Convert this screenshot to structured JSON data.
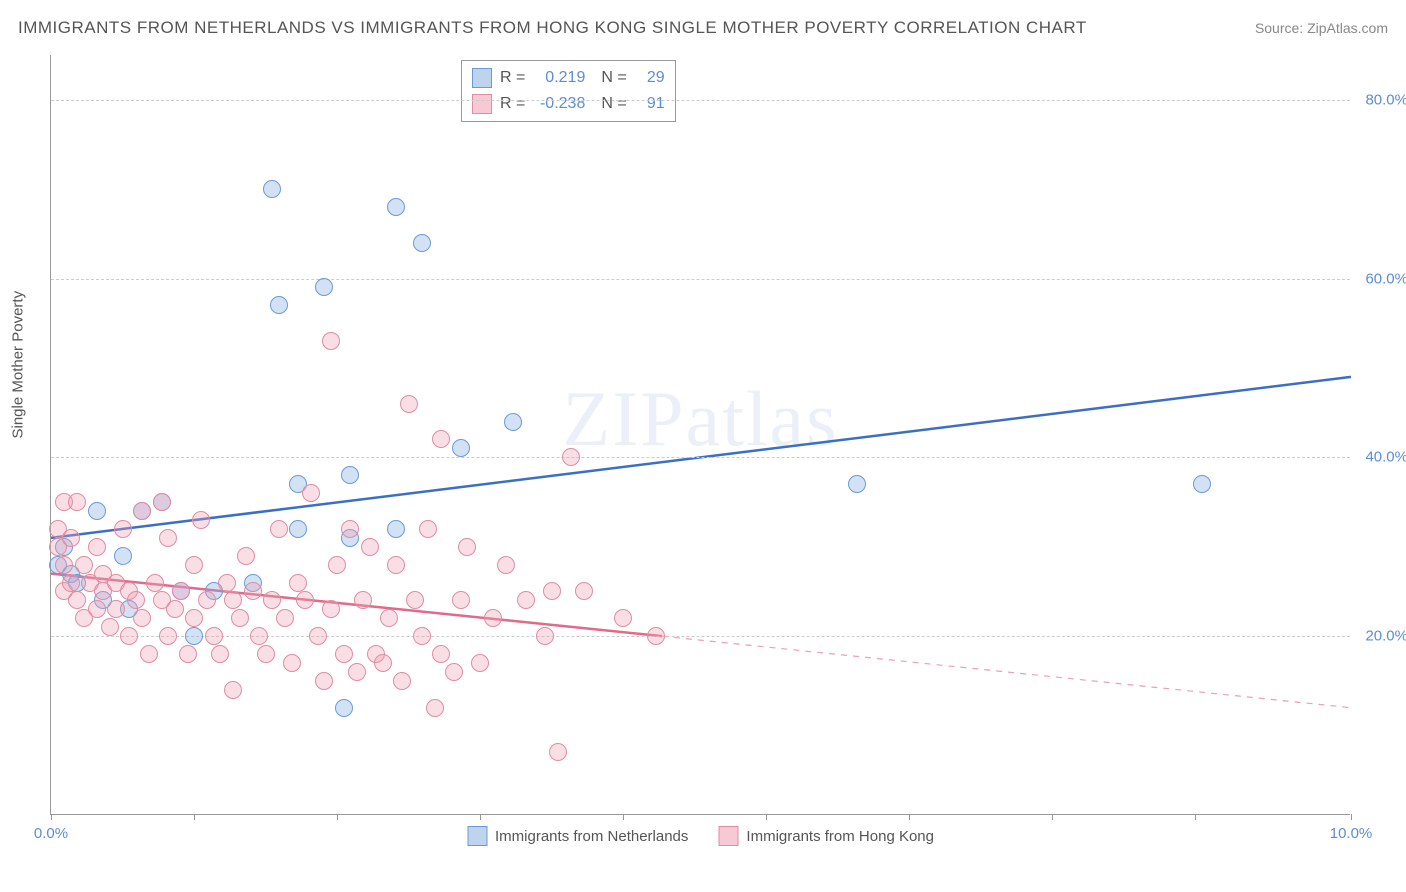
{
  "title": "IMMIGRANTS FROM NETHERLANDS VS IMMIGRANTS FROM HONG KONG SINGLE MOTHER POVERTY CORRELATION CHART",
  "source": "Source: ZipAtlas.com",
  "ylabel": "Single Mother Poverty",
  "watermark": "ZIPatlas",
  "chart": {
    "type": "scatter",
    "xlim": [
      0,
      10
    ],
    "ylim": [
      0,
      85
    ],
    "xticks": [
      0.0,
      1.1,
      2.2,
      3.3,
      4.4,
      5.5,
      6.6,
      7.7,
      8.8,
      10.0
    ],
    "xtick_labels": {
      "0": "0.0%",
      "10": "10.0%"
    },
    "yticks": [
      20,
      40,
      60,
      80
    ],
    "ytick_labels": [
      "20.0%",
      "40.0%",
      "60.0%",
      "80.0%"
    ],
    "grid_color": "#cccccc",
    "axis_color": "#999999",
    "background_color": "#ffffff",
    "marker_radius": 9,
    "marker_stroke_width": 1.5,
    "trend_line_width": 2.5
  },
  "series": [
    {
      "name": "Immigrants from Netherlands",
      "fill": "rgba(130,170,225,0.35)",
      "stroke": "#6a9bd8",
      "swatch_fill": "#bdd3ee",
      "swatch_stroke": "#6a9bd8",
      "R": "0.219",
      "N": "29",
      "trend": {
        "x1": 0,
        "y1": 31,
        "x2": 10,
        "y2": 49,
        "color": "#3b6fc4",
        "dash": null
      },
      "points": [
        [
          0.05,
          28
        ],
        [
          0.1,
          30
        ],
        [
          0.15,
          27
        ],
        [
          0.2,
          26
        ],
        [
          0.35,
          34
        ],
        [
          0.55,
          29
        ],
        [
          0.7,
          34
        ],
        [
          0.85,
          35
        ],
        [
          0.4,
          24
        ],
        [
          0.6,
          23
        ],
        [
          1.0,
          25
        ],
        [
          1.1,
          20
        ],
        [
          1.25,
          25
        ],
        [
          1.55,
          26
        ],
        [
          1.7,
          70
        ],
        [
          1.75,
          57
        ],
        [
          1.9,
          37
        ],
        [
          1.9,
          32
        ],
        [
          2.1,
          59
        ],
        [
          2.25,
          12
        ],
        [
          2.3,
          31
        ],
        [
          2.3,
          38
        ],
        [
          2.65,
          68
        ],
        [
          2.65,
          32
        ],
        [
          2.85,
          64
        ],
        [
          3.15,
          41
        ],
        [
          3.55,
          44
        ],
        [
          6.2,
          37
        ],
        [
          8.85,
          37
        ]
      ]
    },
    {
      "name": "Immigrants from Hong Kong",
      "fill": "rgba(240,160,180,0.35)",
      "stroke": "#e08da2",
      "swatch_fill": "#f6c9d4",
      "swatch_stroke": "#e08da2",
      "R": "-0.238",
      "N": "91",
      "trend": {
        "x1": 0,
        "y1": 27,
        "x2": 4.7,
        "y2": 20,
        "color": "#e06a8a",
        "dash": null
      },
      "trend_ext": {
        "x1": 4.7,
        "y1": 20,
        "x2": 10,
        "y2": 12,
        "color": "#e8a0b3",
        "dash": "6 6"
      },
      "points": [
        [
          0.05,
          32
        ],
        [
          0.05,
          30
        ],
        [
          0.1,
          35
        ],
        [
          0.1,
          28
        ],
        [
          0.1,
          25
        ],
        [
          0.15,
          31
        ],
        [
          0.15,
          26
        ],
        [
          0.2,
          35
        ],
        [
          0.2,
          24
        ],
        [
          0.25,
          28
        ],
        [
          0.25,
          22
        ],
        [
          0.3,
          26
        ],
        [
          0.35,
          23
        ],
        [
          0.35,
          30
        ],
        [
          0.4,
          25
        ],
        [
          0.4,
          27
        ],
        [
          0.45,
          21
        ],
        [
          0.5,
          26
        ],
        [
          0.5,
          23
        ],
        [
          0.55,
          32
        ],
        [
          0.6,
          25
        ],
        [
          0.6,
          20
        ],
        [
          0.65,
          24
        ],
        [
          0.7,
          34
        ],
        [
          0.7,
          22
        ],
        [
          0.75,
          18
        ],
        [
          0.8,
          26
        ],
        [
          0.85,
          24
        ],
        [
          0.85,
          35
        ],
        [
          0.9,
          20
        ],
        [
          0.9,
          31
        ],
        [
          0.95,
          23
        ],
        [
          1.0,
          25
        ],
        [
          1.05,
          18
        ],
        [
          1.1,
          22
        ],
        [
          1.1,
          28
        ],
        [
          1.15,
          33
        ],
        [
          1.2,
          24
        ],
        [
          1.25,
          20
        ],
        [
          1.3,
          18
        ],
        [
          1.35,
          26
        ],
        [
          1.4,
          24
        ],
        [
          1.4,
          14
        ],
        [
          1.45,
          22
        ],
        [
          1.5,
          29
        ],
        [
          1.55,
          25
        ],
        [
          1.6,
          20
        ],
        [
          1.65,
          18
        ],
        [
          1.7,
          24
        ],
        [
          1.75,
          32
        ],
        [
          1.8,
          22
        ],
        [
          1.85,
          17
        ],
        [
          1.9,
          26
        ],
        [
          1.95,
          24
        ],
        [
          2.0,
          36
        ],
        [
          2.05,
          20
        ],
        [
          2.1,
          15
        ],
        [
          2.15,
          23
        ],
        [
          2.15,
          53
        ],
        [
          2.2,
          28
        ],
        [
          2.25,
          18
        ],
        [
          2.3,
          32
        ],
        [
          2.35,
          16
        ],
        [
          2.4,
          24
        ],
        [
          2.45,
          30
        ],
        [
          2.5,
          18
        ],
        [
          2.55,
          17
        ],
        [
          2.6,
          22
        ],
        [
          2.65,
          28
        ],
        [
          2.7,
          15
        ],
        [
          2.75,
          46
        ],
        [
          2.8,
          24
        ],
        [
          2.85,
          20
        ],
        [
          2.9,
          32
        ],
        [
          2.95,
          12
        ],
        [
          3.0,
          18
        ],
        [
          3.0,
          42
        ],
        [
          3.1,
          16
        ],
        [
          3.15,
          24
        ],
        [
          3.2,
          30
        ],
        [
          3.3,
          17
        ],
        [
          3.4,
          22
        ],
        [
          3.5,
          28
        ],
        [
          3.65,
          24
        ],
        [
          3.8,
          20
        ],
        [
          3.85,
          25
        ],
        [
          3.9,
          7
        ],
        [
          4.0,
          40
        ],
        [
          4.1,
          25
        ],
        [
          4.4,
          22
        ],
        [
          4.65,
          20
        ]
      ]
    }
  ]
}
